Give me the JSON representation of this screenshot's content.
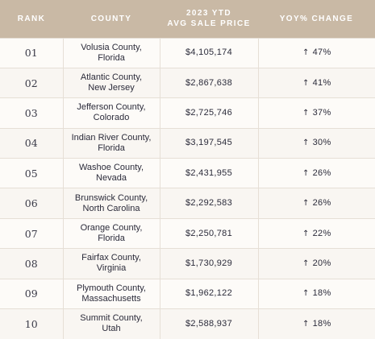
{
  "header": {
    "rank": "RANK",
    "county": "COUNTY",
    "price_line1": "2023 YTD",
    "price_line2": "AVG SALE PRICE",
    "change": "YOY% CHANGE"
  },
  "rows": [
    {
      "rank": "01",
      "county_line1": "Volusia County,",
      "county_line2": "Florida",
      "price": "$4,105,174",
      "change": "47%"
    },
    {
      "rank": "02",
      "county_line1": "Atlantic County,",
      "county_line2": "New Jersey",
      "price": "$2,867,638",
      "change": "41%"
    },
    {
      "rank": "03",
      "county_line1": "Jefferson County,",
      "county_line2": "Colorado",
      "price": "$2,725,746",
      "change": "37%"
    },
    {
      "rank": "04",
      "county_line1": "Indian River County,",
      "county_line2": "Florida",
      "price": "$3,197,545",
      "change": "30%"
    },
    {
      "rank": "05",
      "county_line1": "Washoe County,",
      "county_line2": "Nevada",
      "price": "$2,431,955",
      "change": "26%"
    },
    {
      "rank": "06",
      "county_line1": "Brunswick County,",
      "county_line2": "North Carolina",
      "price": "$2,292,583",
      "change": "26%"
    },
    {
      "rank": "07",
      "county_line1": "Orange County,",
      "county_line2": "Florida",
      "price": "$2,250,781",
      "change": "22%"
    },
    {
      "rank": "08",
      "county_line1": "Fairfax County,",
      "county_line2": "Virginia",
      "price": "$1,730,929",
      "change": "20%"
    },
    {
      "rank": "09",
      "county_line1": "Plymouth County,",
      "county_line2": "Massachusetts",
      "price": "$1,962,122",
      "change": "18%"
    },
    {
      "rank": "10",
      "county_line1": "Summit County,",
      "county_line2": "Utah",
      "price": "$2,588,937",
      "change": "18%"
    }
  ],
  "icons": {
    "change": "arrow-up-icon"
  },
  "colors": {
    "header_bg": "#c9b9a5",
    "header_text": "#ffffff",
    "body_text": "#2b2b3a",
    "border": "#e6dfd6"
  }
}
